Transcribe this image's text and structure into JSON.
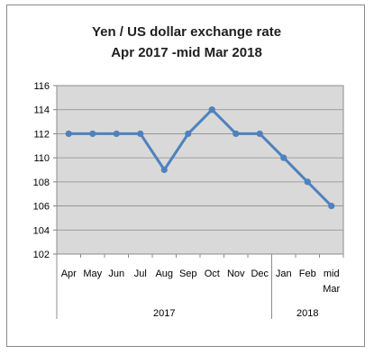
{
  "chart_data": {
    "type": "line",
    "title_lines": [
      "Yen / US dollar exchange rate",
      "Apr 2017 -mid Mar 2018"
    ],
    "categories": [
      "Apr",
      "May",
      "Jun",
      "Jul",
      "Aug",
      "Sep",
      "Oct",
      "Nov",
      "Dec",
      "Jan",
      "Feb",
      "mid Mar"
    ],
    "category_lines": [
      [
        "Apr"
      ],
      [
        "May"
      ],
      [
        "Jun"
      ],
      [
        "Jul"
      ],
      [
        "Aug"
      ],
      [
        "Sep"
      ],
      [
        "Oct"
      ],
      [
        "Nov"
      ],
      [
        "Dec"
      ],
      [
        "Jan"
      ],
      [
        "Feb"
      ],
      [
        "mid",
        "Mar"
      ]
    ],
    "groups": [
      {
        "label": "2017",
        "categories": [
          "Apr",
          "May",
          "Jun",
          "Jul",
          "Aug",
          "Sep",
          "Oct",
          "Nov",
          "Dec"
        ]
      },
      {
        "label": "2018",
        "categories": [
          "Jan",
          "Feb",
          "mid Mar"
        ]
      }
    ],
    "values": [
      112,
      112,
      112,
      112,
      109,
      112,
      114,
      112,
      112,
      110,
      108,
      106
    ],
    "ylim": [
      102,
      116
    ],
    "yticks": [
      102,
      104,
      106,
      108,
      110,
      112,
      114,
      116
    ],
    "xlabel": "",
    "ylabel": "",
    "grid": true,
    "legend": "none",
    "colors": {
      "line": "#4f81bd",
      "plot_background": "#d9d9d9",
      "gridline": "#8c8c8c"
    }
  }
}
